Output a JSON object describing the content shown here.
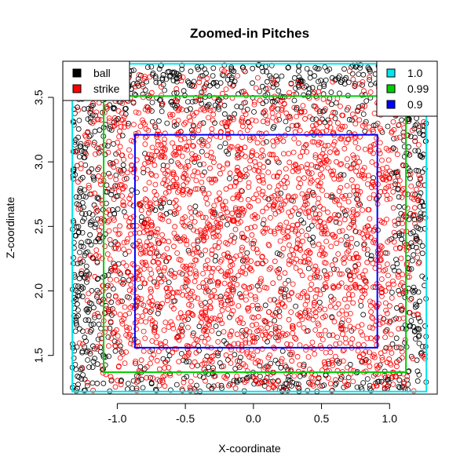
{
  "chart_data": {
    "type": "scatter",
    "title": "Zoomed-in Pitches",
    "xlabel": "X-coordinate",
    "ylabel": "Z-coordinate",
    "xlim": [
      -1.4,
      1.35
    ],
    "ylim": [
      1.2,
      3.78
    ],
    "x_ticks": [
      -1.0,
      -0.5,
      0.0,
      0.5,
      1.0
    ],
    "x_tick_labels": [
      "-1.0",
      "-0.5",
      "0.0",
      "0.5",
      "1.0"
    ],
    "y_ticks": [
      1.5,
      2.0,
      2.5,
      3.0,
      3.5
    ],
    "y_tick_labels": [
      "1.5",
      "2.0",
      "2.5",
      "3.0",
      "3.5"
    ],
    "grid": false,
    "point_series": [
      {
        "name": "ball",
        "color": "#000000",
        "marker": "open-circle"
      },
      {
        "name": "strike",
        "color": "#ff0000",
        "marker": "open-circle"
      }
    ],
    "regions": [
      {
        "name": "1.0",
        "color": "#00e5ee",
        "x": [
          -1.33,
          1.27
        ],
        "z": [
          1.22,
          3.76
        ]
      },
      {
        "name": "0.99",
        "color": "#00cd00",
        "x": [
          -1.1,
          1.12
        ],
        "z": [
          1.37,
          3.51
        ]
      },
      {
        "name": "0.9",
        "color": "#0000ff",
        "x": [
          -0.87,
          0.91
        ],
        "z": [
          1.56,
          3.21
        ]
      }
    ],
    "legends": [
      {
        "position": "top-left",
        "entries": [
          "ball",
          "strike"
        ]
      },
      {
        "position": "top-right",
        "entries": [
          "1.0",
          "0.99",
          "0.9"
        ]
      }
    ]
  }
}
